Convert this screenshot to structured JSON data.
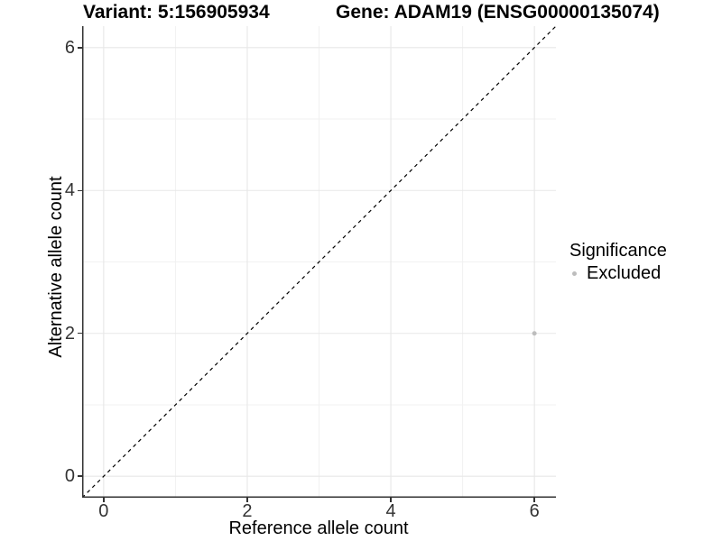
{
  "chart_data": {
    "type": "scatter",
    "title_left": "Variant: 5:156905934",
    "title_right": "Gene: ADAM19 (ENSG00000135074)",
    "xlabel": "Reference allele count",
    "ylabel": "Alternative allele count",
    "xlim": [
      -0.3,
      6.3
    ],
    "ylim": [
      -0.3,
      6.3
    ],
    "x_ticks": [
      0,
      2,
      4,
      6
    ],
    "y_ticks": [
      0,
      2,
      4,
      6
    ],
    "x_minor_ticks": [
      1,
      3,
      5
    ],
    "y_minor_ticks": [
      1,
      3,
      5
    ],
    "grid": "major and minor gridlines, white panel background",
    "points": [
      {
        "x": 6,
        "y": 2,
        "significance": "Excluded"
      }
    ],
    "identity_line": {
      "style": "dashed",
      "from": -0.3,
      "to": 6.3,
      "color": "#000000"
    },
    "legend": {
      "title": "Significance",
      "position": "right",
      "entries": [
        {
          "label": "Excluded",
          "color": "#bdbdbd"
        }
      ]
    }
  },
  "colors": {
    "background": "#ffffff",
    "grid_major": "#e7e7e7",
    "grid_minor": "#f1f1f1",
    "axis_line": "#333333",
    "tick_label": "#333333",
    "point": "#bdbdbd",
    "legend_dot": "#bdbdbd",
    "text": "#000000"
  }
}
